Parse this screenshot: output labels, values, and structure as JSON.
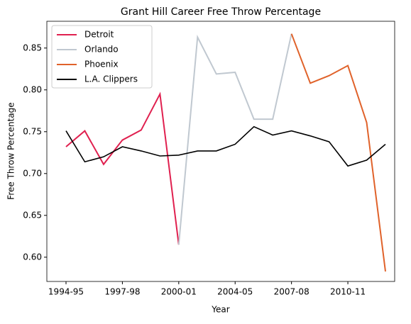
{
  "chart_data": {
    "type": "line",
    "title": "Grant Hill Career Free Throw Percentage",
    "xlabel": "Year",
    "ylabel": "Free Throw Percentage",
    "categories": [
      "1994-95",
      null,
      null,
      "1997-98",
      null,
      null,
      "2000-01",
      null,
      null,
      "2004-05",
      null,
      null,
      "2007-08",
      null,
      null,
      "2010-11",
      null,
      null
    ],
    "series": [
      {
        "name": "Detroit",
        "color": "#e0204f",
        "values": [
          0.732,
          0.751,
          0.711,
          0.74,
          0.752,
          0.795,
          0.615,
          null,
          null,
          null,
          null,
          null,
          null,
          null,
          null,
          null,
          null,
          null
        ]
      },
      {
        "name": "Orlando",
        "color": "#c0c8d0",
        "values": [
          null,
          null,
          null,
          null,
          null,
          null,
          0.615,
          0.863,
          0.819,
          0.821,
          0.765,
          0.765,
          0.867,
          null,
          null,
          null,
          null,
          null
        ]
      },
      {
        "name": "Phoenix",
        "color": "#e0622a",
        "values": [
          null,
          null,
          null,
          null,
          null,
          null,
          null,
          null,
          null,
          null,
          null,
          null,
          0.867,
          0.808,
          0.817,
          0.829,
          0.761,
          0.583
        ]
      },
      {
        "name": "L.A. Clippers",
        "color": "#000000",
        "values": [
          0.751,
          0.714,
          0.72,
          0.732,
          0.727,
          0.721,
          0.722,
          0.727,
          0.727,
          0.735,
          0.756,
          0.746,
          0.751,
          0.745,
          0.738,
          0.709,
          0.716,
          0.735
        ]
      }
    ],
    "ylim": [
      0.571,
      0.882
    ],
    "yticks": [
      {
        "value": 0.6,
        "label": "0.60"
      },
      0.65,
      {
        "value": 0.7,
        "label": "0.70"
      },
      0.75,
      {
        "value": 0.8,
        "label": "0.80"
      },
      0.85
    ],
    "legend": "upper left"
  }
}
